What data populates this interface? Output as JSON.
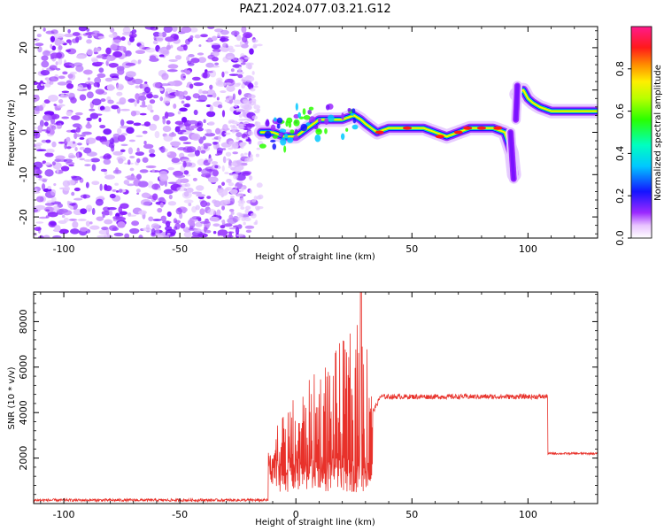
{
  "title": "PAZ1.2024.077.03.21.G12",
  "chart_data": [
    {
      "type": "heatmap",
      "xlabel": "Height of straight line (km)",
      "ylabel": "Frequency (Hz)",
      "xlim": [
        -113,
        130
      ],
      "ylim": [
        -25,
        25
      ],
      "xticks": [
        -100,
        -50,
        0,
        50,
        100
      ],
      "xtick_labels": [
        "-100",
        "-50",
        "0",
        "50",
        "100"
      ],
      "yticks": [
        -20,
        -10,
        0,
        10,
        20
      ],
      "ytick_labels": [
        "-20",
        "-10",
        "0",
        "10",
        "20"
      ],
      "colorbar": {
        "label": "Normalized spectral amplitude",
        "range": [
          0,
          1
        ],
        "ticks": [
          0.0,
          0.2,
          0.4,
          0.6,
          0.8
        ],
        "tick_labels": [
          "0.0",
          "0.2",
          "0.4",
          "0.6",
          "0.8"
        ],
        "colormap": "gist_ncar-like"
      },
      "ridge": [
        {
          "x": -15,
          "y": 0
        },
        {
          "x": -10,
          "y": 0
        },
        {
          "x": -5,
          "y": -1
        },
        {
          "x": 0,
          "y": -1
        },
        {
          "x": 5,
          "y": 1
        },
        {
          "x": 10,
          "y": 3
        },
        {
          "x": 15,
          "y": 3
        },
        {
          "x": 20,
          "y": 3
        },
        {
          "x": 25,
          "y": 4
        },
        {
          "x": 28,
          "y": 3
        },
        {
          "x": 30,
          "y": 2
        },
        {
          "x": 35,
          "y": 0
        },
        {
          "x": 40,
          "y": 1
        },
        {
          "x": 45,
          "y": 1
        },
        {
          "x": 50,
          "y": 1
        },
        {
          "x": 55,
          "y": 1
        },
        {
          "x": 60,
          "y": 0
        },
        {
          "x": 65,
          "y": -1
        },
        {
          "x": 70,
          "y": 0
        },
        {
          "x": 75,
          "y": 1
        },
        {
          "x": 80,
          "y": 1
        },
        {
          "x": 85,
          "y": 1
        },
        {
          "x": 90,
          "y": 0
        },
        {
          "x": 93,
          "y": -5
        },
        {
          "x": 94,
          "y": -10
        },
        {
          "x": 95,
          "y": 9
        },
        {
          "x": 98,
          "y": 10
        },
        {
          "x": 100,
          "y": 8
        },
        {
          "x": 102,
          "y": 7
        },
        {
          "x": 105,
          "y": 6
        },
        {
          "x": 110,
          "y": 5
        },
        {
          "x": 120,
          "y": 5
        },
        {
          "x": 130,
          "y": 5
        }
      ]
    },
    {
      "type": "line",
      "xlabel": "Height of straight line (km)",
      "ylabel": "SNR (10 * v/v)",
      "xlim": [
        -113,
        130
      ],
      "ylim": [
        0,
        9300
      ],
      "xticks": [
        -100,
        -50,
        0,
        50,
        100
      ],
      "xtick_labels": [
        "-100",
        "-50",
        "0",
        "50",
        "100"
      ],
      "yticks": [
        2000,
        4000,
        6000,
        8000
      ],
      "ytick_labels": [
        "2000",
        "4000",
        "6000",
        "8000"
      ],
      "line_color": "#e8312a",
      "series": [
        {
          "x": [
            -113,
            -90,
            -70,
            -50,
            -30,
            -12,
            -10,
            -8,
            -5,
            -3,
            0,
            3,
            5,
            8,
            10,
            12,
            15,
            18,
            20,
            22,
            25,
            27,
            28,
            30,
            32,
            34,
            36,
            40,
            50,
            60,
            70,
            80,
            90,
            100,
            108,
            109,
            110,
            120,
            130
          ],
          "y": [
            100,
            200,
            150,
            200,
            180,
            200,
            2500,
            1500,
            3500,
            800,
            4000,
            1000,
            5500,
            800,
            6000,
            1200,
            7000,
            1000,
            7500,
            1500,
            8000,
            1000,
            9300,
            1500,
            4000,
            4200,
            4600,
            4700,
            4700,
            4750,
            4700,
            4750,
            4700,
            4750,
            4750,
            2200,
            2200,
            2200,
            2150
          ]
        }
      ]
    }
  ]
}
